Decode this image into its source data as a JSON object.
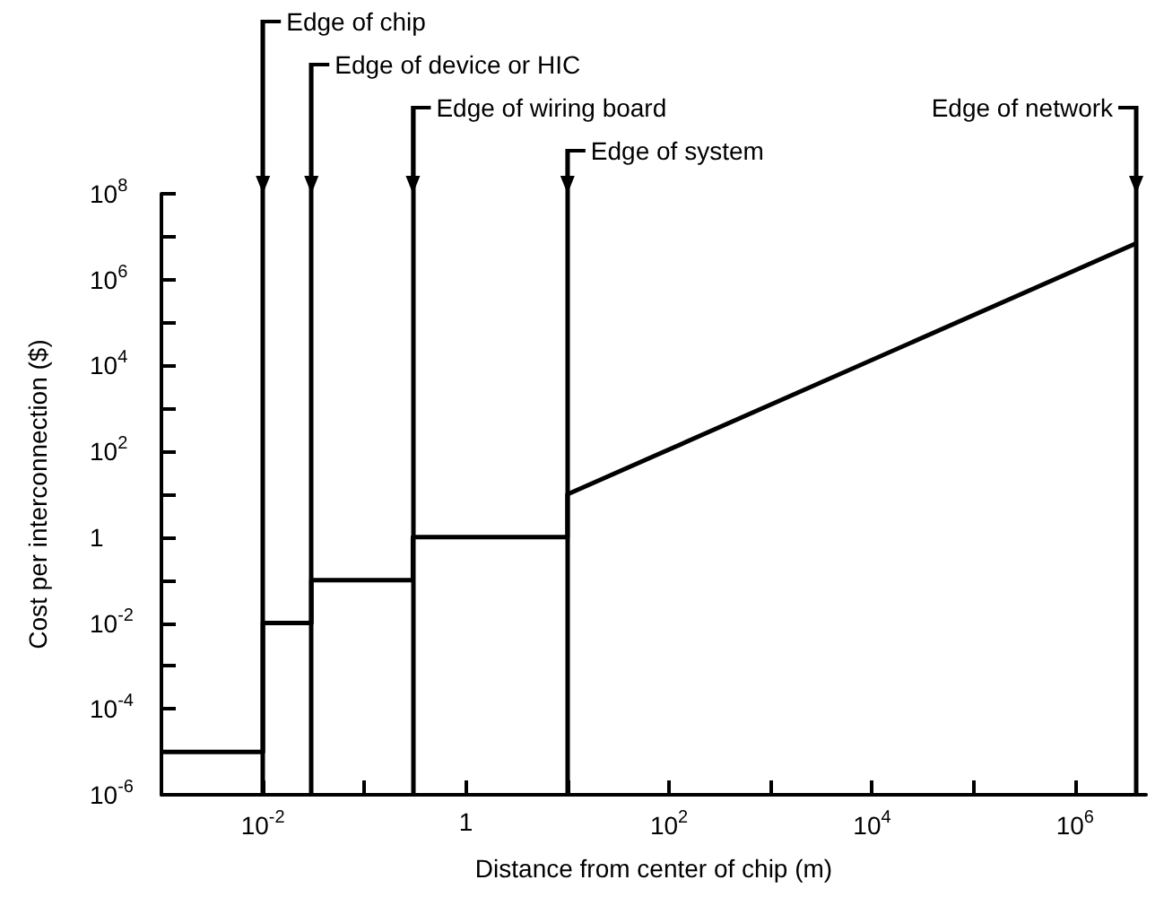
{
  "chart_data": {
    "type": "line",
    "xlabel": "Distance from center of chip (m)",
    "ylabel": "Cost per interconnection ($)",
    "log": "xy",
    "grid": false,
    "marker": "none",
    "xlim": [
      0.001,
      5000000
    ],
    "ylim": [
      1e-06,
      100000000
    ],
    "xticks": [
      {
        "value": 0.01,
        "label": "10$^{-2}$"
      },
      {
        "value": 0.1,
        "label": null
      },
      1,
      {
        "value": 10,
        "label": null
      },
      {
        "value": 100,
        "label": "10$^{2}$"
      },
      {
        "value": 1000,
        "label": null
      },
      {
        "value": 10000,
        "label": "10$^{4}$"
      },
      {
        "value": 100000,
        "label": null
      },
      {
        "value": 1000000,
        "label": "10$^{6}$"
      }
    ],
    "yticks": [
      {
        "value": 1e-06,
        "label": "10$^{-6}$"
      },
      {
        "value": 1e-05,
        "label": null
      },
      {
        "value": 0.0001,
        "label": "10$^{-4}$"
      },
      {
        "value": 0.001,
        "label": null
      },
      {
        "value": 0.01,
        "label": "10$^{-2}$"
      },
      {
        "value": 0.1,
        "label": null
      },
      1,
      {
        "value": 10,
        "label": null
      },
      {
        "value": 100,
        "label": "10$^{2}$"
      },
      {
        "value": 1000,
        "label": null
      },
      {
        "value": 10000,
        "label": "10$^{4}$"
      },
      {
        "value": 100000,
        "label": null
      },
      {
        "value": 1000000,
        "label": "10$^{6}$"
      },
      {
        "value": 10000000,
        "label": null
      },
      {
        "value": 100000000,
        "label": "10$^{8}$"
      }
    ],
    "series": [
      {
        "color": "#000000",
        "x": [
          0.001,
          0.01,
          0.01,
          0.03,
          0.03,
          0.3,
          0.3,
          10,
          10,
          4000000
        ],
        "values": [
          1e-05,
          1e-05,
          0.01,
          0.01,
          0.1,
          0.1,
          1,
          1,
          10,
          7000000
        ]
      }
    ],
    "ref_lines": [
      {
        "axis": "x",
        "value": 0.01,
        "label": "Edge of chip",
        "color": "#000000"
      },
      {
        "axis": "x",
        "value": 0.03,
        "label": "Edge of device or HIC",
        "color": "#000000"
      },
      {
        "axis": "x",
        "value": 0.3,
        "label": "Edge of wiring board",
        "color": "#000000"
      },
      {
        "axis": "x",
        "value": 10,
        "label": "Edge of system",
        "color": "#000000"
      },
      {
        "axis": "x",
        "value": 4000000,
        "label": "Edge of network",
        "color": "#000000"
      }
    ]
  }
}
